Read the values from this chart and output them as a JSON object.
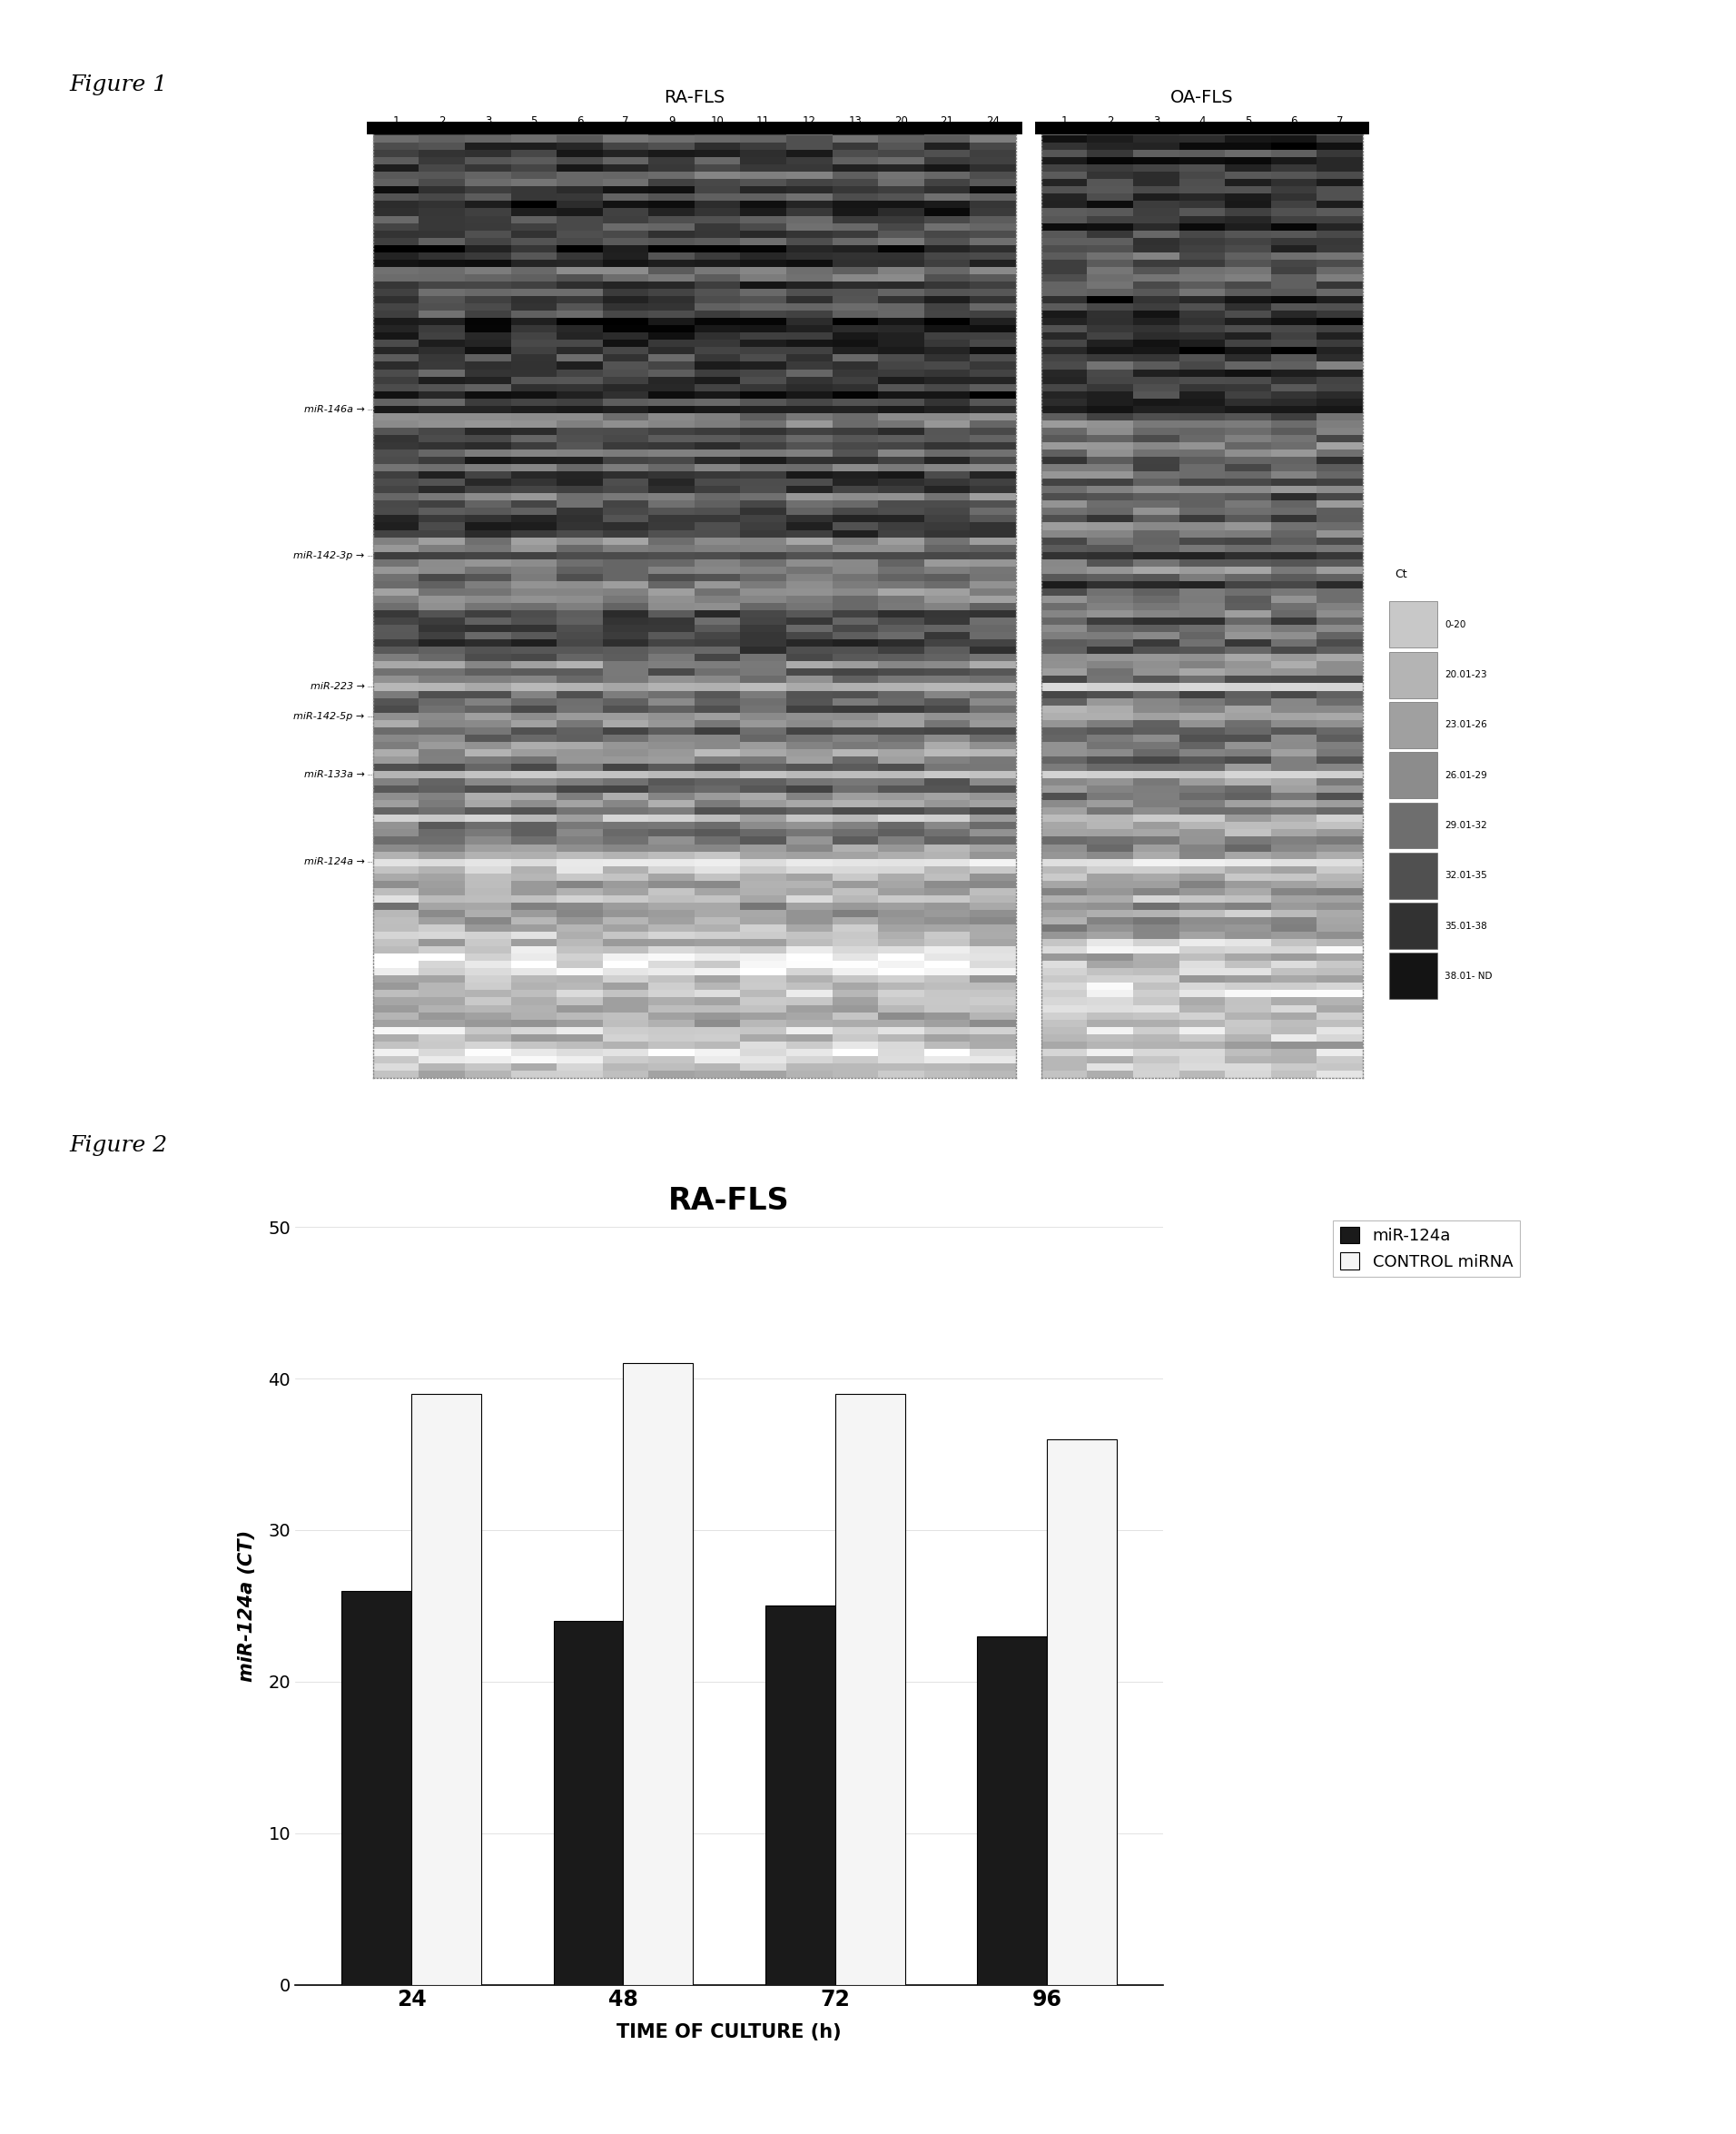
{
  "fig1_title": "Figure 1",
  "fig2_title": "Figure 2",
  "ra_fls_label": "RA-FLS",
  "oa_fls_label": "OA-FLS",
  "ra_columns": [
    "1",
    "2",
    "3",
    "5",
    "6",
    "7",
    "9",
    "10",
    "11",
    "12",
    "13",
    "20",
    "21",
    "24"
  ],
  "oa_columns": [
    "1",
    "2",
    "3",
    "4",
    "5",
    "6",
    "7"
  ],
  "mirna_labels": [
    "miR-146a",
    "miR-142-3p",
    "miR-223",
    "miR-142-5p",
    "miR-133a",
    "miR-124a"
  ],
  "mirna_rows": [
    38,
    58,
    76,
    80,
    88,
    100
  ],
  "n_rows": 130,
  "ct_legend_label": "Ct",
  "ct_legend_items": [
    "0-20",
    "20.01-23",
    "23.01-26",
    "26.01-29",
    "29.01-32",
    "32.01-35",
    "35.01-38",
    "38.01- ND"
  ],
  "ct_colors": [
    "#c8c8c8",
    "#b4b4b4",
    "#a0a0a0",
    "#8c8c8c",
    "#6e6e6e",
    "#505050",
    "#323232",
    "#141414"
  ],
  "bar_title": "RA-FLS",
  "bar_xlabel": "TIME OF CULTURE (h)",
  "bar_ylabel": "miR-124a (CT)",
  "bar_categories": [
    "24",
    "48",
    "72",
    "96"
  ],
  "bar_mir124a": [
    26,
    24,
    25,
    23
  ],
  "bar_control": [
    39,
    41,
    39,
    36
  ],
  "bar_color_mir": "#1a1a1a",
  "bar_color_ctrl": "#f5f5f5",
  "bar_ylim": [
    0,
    50
  ],
  "bar_yticks": [
    0,
    10,
    20,
    30,
    40,
    50
  ],
  "legend_mir": "miR-124a",
  "legend_ctrl": "CONTROL miRNA",
  "background_color": "#ffffff"
}
